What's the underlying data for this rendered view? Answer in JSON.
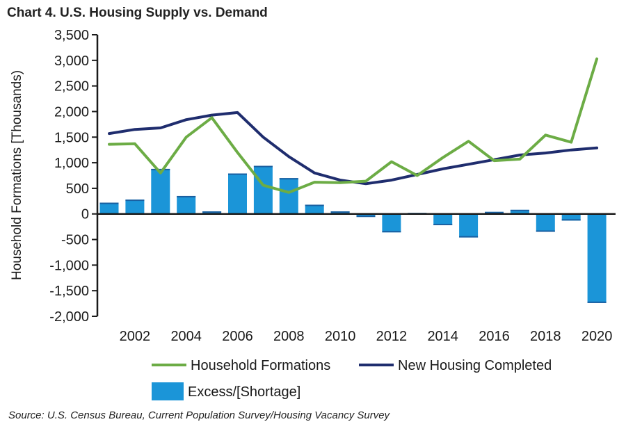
{
  "chart_data": {
    "type": "bar+line",
    "title": "Chart 4. U.S. Housing Supply vs. Demand",
    "source": "Source: U.S. Census Bureau, Current Population Survey/Housing Vacancy Survey",
    "ylabel": "Household Formations [Thousands)",
    "xlabel": "",
    "ylim": [
      -2000,
      3500
    ],
    "yticks": [
      "3,500",
      "3,000",
      "2,500",
      "2,000",
      "1,500",
      "1,000",
      "500",
      "0",
      "-500",
      "-1,000",
      "-1,500",
      "-2,000"
    ],
    "ytick_values": [
      3500,
      3000,
      2500,
      2000,
      1500,
      1000,
      500,
      0,
      -500,
      -1000,
      -1500,
      -2000
    ],
    "x": [
      2001,
      2002,
      2003,
      2004,
      2005,
      2006,
      2007,
      2008,
      2009,
      2010,
      2011,
      2012,
      2013,
      2014,
      2015,
      2016,
      2017,
      2018,
      2019,
      2020
    ],
    "xtick_labels": [
      "2002",
      "2004",
      "2006",
      "2008",
      "2010",
      "2012",
      "2014",
      "2016",
      "2018",
      "2020"
    ],
    "xtick_values": [
      2002,
      2004,
      2006,
      2008,
      2010,
      2012,
      2014,
      2016,
      2018,
      2020
    ],
    "series": [
      {
        "name": "Household Formations",
        "kind": "line",
        "color": "#6cac45",
        "values": [
          1360,
          1370,
          800,
          1500,
          1880,
          1200,
          560,
          420,
          620,
          610,
          640,
          1020,
          750,
          1100,
          1420,
          1040,
          1070,
          1540,
          1400,
          3030
        ]
      },
      {
        "name": "New Housing Completed",
        "kind": "line",
        "color": "#1f2d6e",
        "values": [
          1570,
          1650,
          1680,
          1840,
          1930,
          1980,
          1500,
          1120,
          800,
          660,
          590,
          660,
          770,
          880,
          970,
          1060,
          1150,
          1190,
          1250,
          1290
        ]
      },
      {
        "name": "Excess/[Shortage]",
        "kind": "bar",
        "color": "#1b95d8",
        "values": [
          220,
          280,
          880,
          350,
          50,
          790,
          940,
          700,
          180,
          50,
          -60,
          -360,
          20,
          -220,
          -460,
          40,
          80,
          -350,
          -130,
          -1740
        ]
      }
    ],
    "legend": [
      {
        "label": "Household Formations",
        "kind": "line",
        "color": "#6cac45"
      },
      {
        "label": "New Housing Completed",
        "kind": "line",
        "color": "#1f2d6e"
      },
      {
        "label": "Excess/[Shortage]",
        "kind": "bar",
        "color": "#1b95d8"
      }
    ]
  }
}
